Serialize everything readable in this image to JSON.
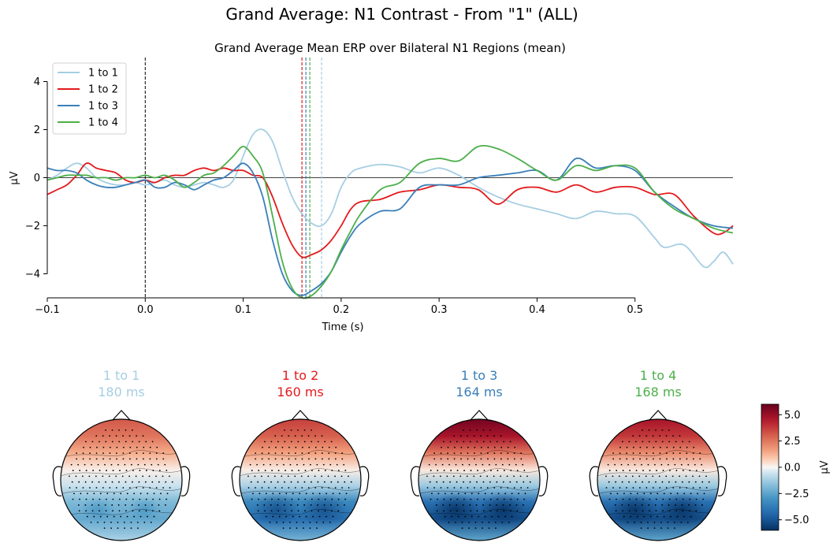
{
  "figure": {
    "suptitle": "Grand Average: N1 Contrast - From \"1\" (ALL)"
  },
  "colors": {
    "c1": "#a6cee3",
    "c2": "#e31a1c",
    "c3": "#3a7fb8",
    "c4": "#4daf4a"
  },
  "chart_data": [
    {
      "type": "line",
      "title": "Grand Average Mean ERP over Bilateral N1 Regions (mean)",
      "xlabel": "Time (s)",
      "ylabel": "µV",
      "xlim": [
        -0.1,
        0.6
      ],
      "ylim": [
        -5,
        5
      ],
      "xticks": [
        -0.1,
        0.0,
        0.1,
        0.2,
        0.3,
        0.4,
        0.5
      ],
      "xtick_labels": [
        "−0.1",
        "0.0",
        "0.1",
        "0.2",
        "0.3",
        "0.4",
        "0.5"
      ],
      "yticks": [
        -4,
        -2,
        0,
        2,
        4
      ],
      "ytick_labels": [
        "−4",
        "−2",
        "0",
        "2",
        "4"
      ],
      "grid": false,
      "legend": "top-left",
      "zero_lines": {
        "vertical_at": 0.0,
        "horizontal_at": 0
      },
      "peak_markers": [
        {
          "series": "1 to 1",
          "x": 0.18
        },
        {
          "series": "1 to 2",
          "x": 0.16
        },
        {
          "series": "1 to 3",
          "x": 0.164
        },
        {
          "series": "1 to 4",
          "x": 0.168
        }
      ],
      "series": [
        {
          "name": "1 to 1",
          "color": "#a6cee3",
          "points": [
            [
              -0.1,
              -0.1
            ],
            [
              -0.09,
              0.1
            ],
            [
              -0.08,
              0.4
            ],
            [
              -0.07,
              0.6
            ],
            [
              -0.06,
              0.4
            ],
            [
              -0.05,
              0.0
            ],
            [
              -0.04,
              -0.2
            ],
            [
              -0.03,
              -0.3
            ],
            [
              -0.02,
              -0.3
            ],
            [
              -0.01,
              -0.2
            ],
            [
              0.0,
              -0.3
            ],
            [
              0.01,
              -0.2
            ],
            [
              0.02,
              -0.1
            ],
            [
              0.03,
              -0.3
            ],
            [
              0.04,
              -0.4
            ],
            [
              0.05,
              -0.3
            ],
            [
              0.06,
              -0.2
            ],
            [
              0.07,
              -0.3
            ],
            [
              0.08,
              -0.4
            ],
            [
              0.09,
              -0.1
            ],
            [
              0.1,
              0.9
            ],
            [
              0.11,
              1.8
            ],
            [
              0.12,
              2.0
            ],
            [
              0.13,
              1.5
            ],
            [
              0.14,
              0.3
            ],
            [
              0.15,
              -0.8
            ],
            [
              0.16,
              -1.5
            ],
            [
              0.17,
              -1.9
            ],
            [
              0.18,
              -2.0
            ],
            [
              0.19,
              -1.5
            ],
            [
              0.2,
              -0.4
            ],
            [
              0.21,
              0.2
            ],
            [
              0.22,
              0.4
            ],
            [
              0.24,
              0.55
            ],
            [
              0.26,
              0.45
            ],
            [
              0.28,
              0.2
            ],
            [
              0.3,
              0.4
            ],
            [
              0.32,
              0.1
            ],
            [
              0.34,
              -0.4
            ],
            [
              0.36,
              -0.8
            ],
            [
              0.38,
              -1.1
            ],
            [
              0.4,
              -1.3
            ],
            [
              0.42,
              -1.5
            ],
            [
              0.44,
              -1.7
            ],
            [
              0.46,
              -1.4
            ],
            [
              0.48,
              -1.5
            ],
            [
              0.5,
              -1.6
            ],
            [
              0.52,
              -2.5
            ],
            [
              0.53,
              -2.9
            ],
            [
              0.55,
              -2.8
            ],
            [
              0.57,
              -3.7
            ],
            [
              0.58,
              -3.5
            ],
            [
              0.59,
              -3.1
            ],
            [
              0.6,
              -3.6
            ]
          ]
        },
        {
          "name": "1 to 2",
          "color": "#e31a1c",
          "points": [
            [
              -0.1,
              -0.7
            ],
            [
              -0.09,
              -0.5
            ],
            [
              -0.08,
              -0.3
            ],
            [
              -0.07,
              0.1
            ],
            [
              -0.06,
              0.6
            ],
            [
              -0.05,
              0.4
            ],
            [
              -0.04,
              0.3
            ],
            [
              -0.03,
              0.2
            ],
            [
              -0.02,
              -0.1
            ],
            [
              -0.01,
              -0.2
            ],
            [
              0.0,
              -0.1
            ],
            [
              0.01,
              -0.2
            ],
            [
              0.02,
              0.0
            ],
            [
              0.03,
              0.1
            ],
            [
              0.04,
              0.1
            ],
            [
              0.05,
              0.3
            ],
            [
              0.06,
              0.4
            ],
            [
              0.07,
              0.3
            ],
            [
              0.08,
              0.4
            ],
            [
              0.09,
              0.3
            ],
            [
              0.1,
              0.3
            ],
            [
              0.11,
              0.1
            ],
            [
              0.12,
              0.0
            ],
            [
              0.13,
              -0.8
            ],
            [
              0.14,
              -1.9
            ],
            [
              0.15,
              -2.8
            ],
            [
              0.16,
              -3.3
            ],
            [
              0.17,
              -3.2
            ],
            [
              0.18,
              -3.0
            ],
            [
              0.19,
              -2.6
            ],
            [
              0.2,
              -2.0
            ],
            [
              0.21,
              -1.3
            ],
            [
              0.22,
              -1.0
            ],
            [
              0.24,
              -0.9
            ],
            [
              0.26,
              -0.6
            ],
            [
              0.28,
              -0.5
            ],
            [
              0.3,
              -0.3
            ],
            [
              0.32,
              -0.4
            ],
            [
              0.34,
              -0.5
            ],
            [
              0.36,
              -1.1
            ],
            [
              0.38,
              -0.5
            ],
            [
              0.4,
              -0.4
            ],
            [
              0.42,
              -0.6
            ],
            [
              0.44,
              -0.3
            ],
            [
              0.46,
              -0.6
            ],
            [
              0.48,
              -0.4
            ],
            [
              0.5,
              -0.4
            ],
            [
              0.52,
              -0.7
            ],
            [
              0.54,
              -0.7
            ],
            [
              0.56,
              -1.6
            ],
            [
              0.58,
              -2.3
            ],
            [
              0.59,
              -2.3
            ],
            [
              0.6,
              -2.0
            ]
          ]
        },
        {
          "name": "1 to 3",
          "color": "#3a7fb8",
          "points": [
            [
              -0.1,
              0.4
            ],
            [
              -0.09,
              0.3
            ],
            [
              -0.08,
              0.3
            ],
            [
              -0.07,
              0.2
            ],
            [
              -0.06,
              -0.1
            ],
            [
              -0.05,
              -0.3
            ],
            [
              -0.04,
              -0.4
            ],
            [
              -0.03,
              -0.4
            ],
            [
              -0.02,
              -0.3
            ],
            [
              -0.01,
              -0.2
            ],
            [
              0.0,
              -0.1
            ],
            [
              0.01,
              -0.4
            ],
            [
              0.02,
              -0.4
            ],
            [
              0.03,
              -0.2
            ],
            [
              0.04,
              -0.3
            ],
            [
              0.05,
              -0.5
            ],
            [
              0.06,
              -0.3
            ],
            [
              0.07,
              -0.1
            ],
            [
              0.08,
              0.0
            ],
            [
              0.09,
              0.3
            ],
            [
              0.1,
              0.6
            ],
            [
              0.11,
              0.2
            ],
            [
              0.12,
              -0.8
            ],
            [
              0.13,
              -2.6
            ],
            [
              0.14,
              -4.0
            ],
            [
              0.15,
              -4.7
            ],
            [
              0.16,
              -4.9
            ],
            [
              0.17,
              -4.7
            ],
            [
              0.18,
              -4.4
            ],
            [
              0.19,
              -3.9
            ],
            [
              0.2,
              -3.1
            ],
            [
              0.21,
              -2.4
            ],
            [
              0.22,
              -1.9
            ],
            [
              0.24,
              -1.4
            ],
            [
              0.26,
              -1.3
            ],
            [
              0.28,
              -0.4
            ],
            [
              0.3,
              -0.3
            ],
            [
              0.32,
              -0.3
            ],
            [
              0.34,
              0.0
            ],
            [
              0.36,
              0.1
            ],
            [
              0.38,
              0.2
            ],
            [
              0.4,
              0.3
            ],
            [
              0.42,
              -0.1
            ],
            [
              0.44,
              0.8
            ],
            [
              0.46,
              0.4
            ],
            [
              0.48,
              0.5
            ],
            [
              0.5,
              0.3
            ],
            [
              0.52,
              -0.6
            ],
            [
              0.54,
              -1.2
            ],
            [
              0.56,
              -1.7
            ],
            [
              0.58,
              -2.0
            ],
            [
              0.6,
              -2.1
            ]
          ]
        },
        {
          "name": "1 to 4",
          "color": "#4daf4a",
          "points": [
            [
              -0.1,
              -0.1
            ],
            [
              -0.09,
              0.0
            ],
            [
              -0.08,
              0.1
            ],
            [
              -0.07,
              0.1
            ],
            [
              -0.06,
              0.1
            ],
            [
              -0.05,
              0.0
            ],
            [
              -0.04,
              0.0
            ],
            [
              -0.03,
              -0.1
            ],
            [
              -0.02,
              0.0
            ],
            [
              -0.01,
              0.0
            ],
            [
              0.0,
              0.1
            ],
            [
              0.01,
              0.0
            ],
            [
              0.02,
              0.1
            ],
            [
              0.03,
              -0.1
            ],
            [
              0.04,
              -0.4
            ],
            [
              0.05,
              -0.2
            ],
            [
              0.06,
              0.1
            ],
            [
              0.07,
              0.2
            ],
            [
              0.08,
              0.5
            ],
            [
              0.09,
              0.9
            ],
            [
              0.1,
              1.3
            ],
            [
              0.11,
              0.9
            ],
            [
              0.12,
              0.2
            ],
            [
              0.13,
              -1.6
            ],
            [
              0.14,
              -3.5
            ],
            [
              0.15,
              -4.6
            ],
            [
              0.16,
              -5.0
            ],
            [
              0.17,
              -4.9
            ],
            [
              0.18,
              -4.5
            ],
            [
              0.19,
              -3.9
            ],
            [
              0.2,
              -3.0
            ],
            [
              0.21,
              -2.2
            ],
            [
              0.22,
              -1.5
            ],
            [
              0.24,
              -0.5
            ],
            [
              0.26,
              -0.2
            ],
            [
              0.28,
              0.6
            ],
            [
              0.3,
              0.8
            ],
            [
              0.32,
              0.7
            ],
            [
              0.34,
              1.3
            ],
            [
              0.36,
              1.2
            ],
            [
              0.38,
              0.8
            ],
            [
              0.4,
              0.3
            ],
            [
              0.42,
              -0.1
            ],
            [
              0.44,
              0.5
            ],
            [
              0.46,
              0.3
            ],
            [
              0.48,
              0.5
            ],
            [
              0.5,
              0.4
            ],
            [
              0.52,
              -0.6
            ],
            [
              0.54,
              -1.3
            ],
            [
              0.56,
              -1.7
            ],
            [
              0.58,
              -2.1
            ],
            [
              0.6,
              -2.3
            ]
          ]
        }
      ]
    },
    {
      "type": "heatmap",
      "title": "",
      "colorbar": {
        "label": "µV",
        "range": [
          -6.0,
          6.0
        ],
        "ticks": [
          5.0,
          2.5,
          0.0,
          -2.5,
          -5.0
        ],
        "tick_labels": [
          "5.0",
          "2.5",
          "0.0",
          "−2.5",
          "−5.0"
        ]
      },
      "topomaps": [
        {
          "condition": "1 to 1",
          "time_label": "180 ms",
          "color": "#a6cee3",
          "frontal": 3.0,
          "posterior": -2.5
        },
        {
          "condition": "1 to 2",
          "time_label": "160 ms",
          "color": "#e31a1c",
          "frontal": 3.5,
          "posterior": -4.5
        },
        {
          "condition": "1 to 3",
          "time_label": "164 ms",
          "color": "#3a7fb8",
          "frontal": 5.5,
          "posterior": -5.5
        },
        {
          "condition": "1 to 4",
          "time_label": "168 ms",
          "color": "#4daf4a",
          "frontal": 4.5,
          "posterior": -5.5
        }
      ]
    }
  ]
}
